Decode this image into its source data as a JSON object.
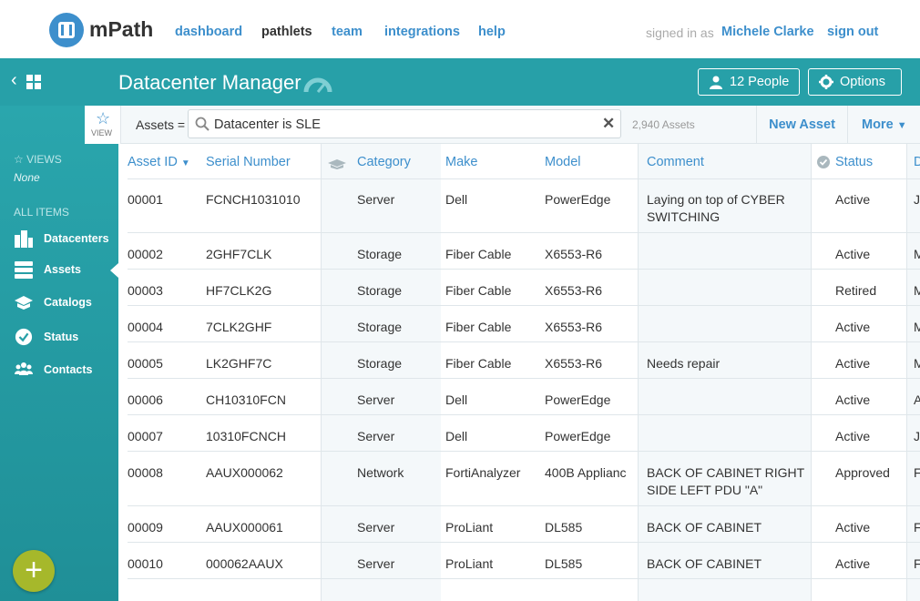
{
  "app": {
    "name": "mPath"
  },
  "nav": {
    "links": [
      "dashboard",
      "pathlets",
      "team",
      "integrations",
      "help"
    ],
    "signed_in_prefix": "signed in as",
    "user": "Michele Clarke",
    "sign_out": "sign out"
  },
  "header": {
    "title": "Datacenter Manager",
    "people_button": "12 People",
    "options_button": "Options"
  },
  "sidebar": {
    "views_label": "VIEWS",
    "views_value": "None",
    "all_items_label": "ALL ITEMS",
    "items": [
      {
        "label": "Datacenters",
        "icon": "buildings-icon"
      },
      {
        "label": "Assets",
        "icon": "server-icon"
      },
      {
        "label": "Catalogs",
        "icon": "catalog-icon"
      },
      {
        "label": "Status",
        "icon": "check-circle-icon"
      },
      {
        "label": "Contacts",
        "icon": "people-icon"
      }
    ],
    "add_button": "+"
  },
  "filter": {
    "view_label": "VIEW",
    "prefix": "Assets =",
    "query": "Datacenter is SLE",
    "count": "2,940 Assets",
    "new_asset": "New Asset",
    "more": "More"
  },
  "table": {
    "columns": [
      "Asset ID",
      "Serial Number",
      "Category",
      "Make",
      "Model",
      "Comment",
      "Status",
      "D"
    ],
    "rows": [
      {
        "id": "00001",
        "serial": "FCNCH1031010",
        "category": "Server",
        "make": "Dell",
        "model": "PowerEdge",
        "comment": "Laying on top of CYBER SWITCHING",
        "status": "Active",
        "d": "J("
      },
      {
        "id": "00002",
        "serial": "2GHF7CLK",
        "category": "Storage",
        "make": "Fiber Cable",
        "model": "X6553-R6",
        "comment": "",
        "status": "Active",
        "d": "M"
      },
      {
        "id": "00003",
        "serial": "HF7CLK2G",
        "category": "Storage",
        "make": "Fiber Cable",
        "model": "X6553-R6",
        "comment": "",
        "status": "Retired",
        "d": "M"
      },
      {
        "id": "00004",
        "serial": "7CLK2GHF",
        "category": "Storage",
        "make": "Fiber Cable",
        "model": "X6553-R6",
        "comment": "",
        "status": "Active",
        "d": "M"
      },
      {
        "id": "00005",
        "serial": "LK2GHF7C",
        "category": "Storage",
        "make": "Fiber Cable",
        "model": "X6553-R6",
        "comment": "Needs repair",
        "status": "Active",
        "d": "M"
      },
      {
        "id": "00006",
        "serial": "CH10310FCN",
        "category": "Server",
        "make": "Dell",
        "model": "PowerEdge",
        "comment": "",
        "status": "Active",
        "d": "A"
      },
      {
        "id": "00007",
        "serial": "10310FCNCH",
        "category": "Server",
        "make": "Dell",
        "model": "PowerEdge",
        "comment": "",
        "status": "Active",
        "d": "J("
      },
      {
        "id": "00008",
        "serial": "AAUX000062",
        "category": "Network",
        "make": "FortiAnalyzer",
        "model": "400B Applianc",
        "comment": "BACK OF CABINET RIGHT SIDE LEFT PDU \"A\"",
        "status": "Approved",
        "d": "F"
      },
      {
        "id": "00009",
        "serial": "AAUX000061",
        "category": "Server",
        "make": "ProLiant",
        "model": "DL585",
        "comment": "BACK OF CABINET",
        "status": "Active",
        "d": "F"
      },
      {
        "id": "00010",
        "serial": "000062AAUX",
        "category": "Server",
        "make": "ProLiant",
        "model": "DL585",
        "comment": "BACK OF CABINET",
        "status": "Active",
        "d": "F"
      }
    ]
  },
  "colors": {
    "teal": "#27a0a8",
    "link": "#3d8fcc",
    "fab": "#a6b82b"
  }
}
